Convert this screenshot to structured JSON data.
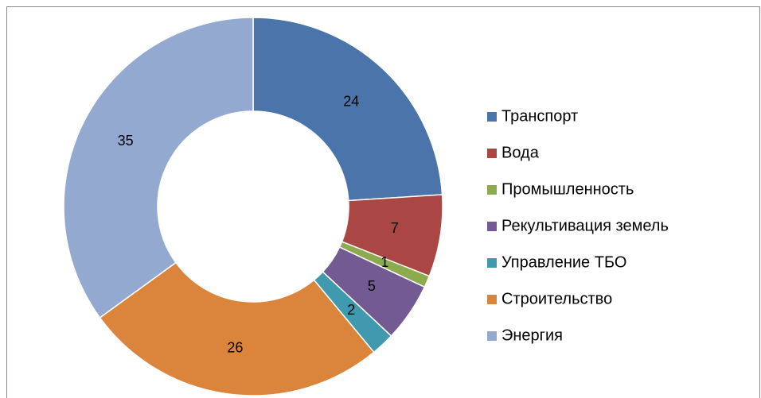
{
  "chart_data": {
    "type": "donut",
    "categories": [
      "Транспорт",
      "Вода",
      "Промышленность",
      "Рекультивация земель",
      "Управление ТБО",
      "Строительство",
      "Энергия"
    ],
    "values": [
      24,
      7,
      1,
      5,
      2,
      26,
      35
    ],
    "colors": [
      "#4a74aa",
      "#aa4644",
      "#8caa4e",
      "#735a93",
      "#4199b0",
      "#db843c",
      "#94a9d0"
    ],
    "legend": "right"
  }
}
